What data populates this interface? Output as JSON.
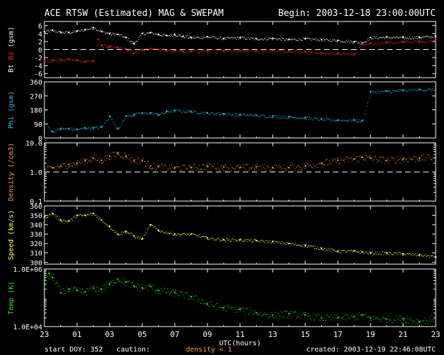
{
  "header": {
    "title": "ACE RTSW (Estimated) MAG & SWEPAM",
    "begin": "Begin: 2003-12-18 23:00:00UTC"
  },
  "footer": {
    "start_label": "start DOY: 352",
    "caution_label": "caution:",
    "caution_value": "density < 1",
    "created_label": "created: 2003-12-19 22:46:08UTC"
  },
  "colors": {
    "bt": "#ffffff",
    "bz": "#ff2020",
    "phi": "#33bbee",
    "density": "#ff9944",
    "speed": "#ffff44",
    "temp": "#33dd33",
    "axes": "#ffffff",
    "background": "#000000"
  },
  "chart_data": [
    {
      "type": "scatter",
      "panel": "mag",
      "ylabel_parts": [
        "Bt",
        "Bz",
        "(gsm)"
      ],
      "ylim": [
        -7,
        7
      ],
      "yticks": [
        6,
        4,
        2,
        0,
        -2,
        -4,
        -6
      ],
      "ytick_labels": [
        "6",
        "4",
        "2",
        "0",
        "-2",
        "-4",
        "-6"
      ],
      "reference_line": 0,
      "series": [
        {
          "name": "Bt",
          "color": "#ffffff",
          "x": [
            23.0,
            23.5,
            24.0,
            24.5,
            25.0,
            25.5,
            26.0,
            26.5,
            27.0,
            27.5,
            28.0,
            28.5,
            29.0,
            29.5,
            30.0,
            30.5,
            31.0,
            31.5,
            32.0,
            33.0,
            34.0,
            35.0,
            36.0,
            37.0,
            38.0,
            39.0,
            40.0,
            41.0,
            42.0,
            42.5,
            43.0,
            44.0,
            45.0,
            46.0,
            47.0
          ],
          "values": [
            4.5,
            4.8,
            4.3,
            4.3,
            4.6,
            5.0,
            5.5,
            4.5,
            4.0,
            3.8,
            3.0,
            1.5,
            4.0,
            4.2,
            3.8,
            3.5,
            3.8,
            3.3,
            3.0,
            3.2,
            2.8,
            3.0,
            2.7,
            2.8,
            2.5,
            2.7,
            2.5,
            2.3,
            2.0,
            1.7,
            3.0,
            3.1,
            3.0,
            3.1,
            3.3
          ]
        },
        {
          "name": "Bz",
          "color": "#ff2020",
          "x": [
            23.0,
            23.5,
            24.0,
            24.5,
            25.0,
            25.5,
            26.0,
            26.3,
            26.5,
            27.0,
            27.5,
            28.0,
            28.5,
            29.0,
            29.5,
            30.0,
            30.5,
            31.0,
            31.5,
            32.0,
            33.0,
            34.0,
            35.0,
            36.0,
            37.0,
            38.0,
            39.0,
            40.0,
            41.0,
            42.0,
            42.5,
            43.0,
            44.0,
            45.0,
            46.0,
            47.0
          ],
          "values": [
            -3.0,
            -2.6,
            -2.5,
            -2.4,
            -2.6,
            -3.0,
            -2.8,
            2.5,
            1.0,
            0.8,
            0.5,
            0.2,
            -1.0,
            0.0,
            0.2,
            0.0,
            -0.3,
            -0.3,
            -0.5,
            -0.4,
            -0.3,
            -0.2,
            -0.3,
            -0.3,
            -0.2,
            -0.3,
            -0.5,
            -0.8,
            -1.0,
            -1.2,
            1.5,
            1.6,
            1.7,
            1.9,
            2.0,
            2.2
          ]
        }
      ]
    },
    {
      "type": "scatter",
      "panel": "phi",
      "ylabel_parts": [
        "Phi",
        "(gsm)"
      ],
      "ylim": [
        0,
        360
      ],
      "yticks": [
        360,
        270,
        180,
        90,
        0
      ],
      "ytick_labels": [
        "360",
        "270",
        "180",
        "90",
        "0"
      ],
      "series": [
        {
          "name": "Phi",
          "color": "#33bbee",
          "x": [
            23.0,
            23.5,
            24.0,
            24.5,
            25.0,
            25.5,
            26.0,
            26.5,
            27.0,
            27.5,
            28.0,
            28.5,
            29.0,
            29.5,
            30.0,
            30.5,
            31.0,
            32.0,
            33.0,
            34.0,
            35.0,
            36.0,
            37.0,
            38.0,
            39.0,
            40.0,
            41.0,
            42.0,
            42.5,
            43.0,
            44.0,
            45.0,
            46.0,
            47.0
          ],
          "values": [
            100,
            40,
            60,
            60,
            55,
            65,
            65,
            70,
            140,
            60,
            140,
            150,
            160,
            160,
            150,
            170,
            175,
            170,
            160,
            155,
            150,
            145,
            140,
            135,
            130,
            120,
            115,
            115,
            110,
            295,
            300,
            305,
            310,
            310
          ]
        }
      ]
    },
    {
      "type": "scatter",
      "panel": "density",
      "ylabel_parts": [
        "Density",
        "(/cm3)"
      ],
      "yscale": "log",
      "ylim": [
        0.1,
        10.0
      ],
      "yticks": [
        10.0,
        1.0,
        0.1
      ],
      "ytick_labels": [
        "10.0",
        "1.0",
        "0.1"
      ],
      "reference_line": 1.0,
      "series": [
        {
          "name": "Density",
          "color": "#ff9944",
          "x": [
            23.0,
            23.5,
            24.0,
            24.5,
            25.0,
            25.5,
            26.0,
            26.5,
            27.0,
            27.5,
            28.0,
            28.5,
            29.0,
            29.5,
            30.0,
            31.0,
            32.0,
            33.0,
            34.0,
            35.0,
            36.0,
            37.0,
            38.0,
            39.0,
            40.0,
            41.0,
            42.0,
            42.5,
            43.0,
            44.0,
            45.0,
            46.0,
            47.0
          ],
          "values": [
            1.2,
            1.4,
            1.6,
            1.8,
            2.0,
            2.5,
            3.0,
            2.5,
            3.5,
            4.5,
            3.5,
            2.5,
            2.5,
            1.6,
            1.5,
            1.4,
            1.4,
            1.6,
            1.5,
            1.4,
            1.5,
            1.4,
            1.4,
            1.6,
            2.0,
            2.5,
            2.8,
            3.2,
            3.0,
            2.5,
            2.8,
            3.0,
            3.2
          ]
        }
      ]
    },
    {
      "type": "scatter",
      "panel": "speed",
      "ylabel_parts": [
        "Speed",
        "(km/s)"
      ],
      "ylim": [
        298,
        360
      ],
      "yticks": [
        360,
        350,
        340,
        330,
        320,
        310,
        300
      ],
      "ytick_labels": [
        "360",
        "350",
        "340",
        "330",
        "320",
        "310",
        "300"
      ],
      "series": [
        {
          "name": "Speed",
          "color": "#ffff44",
          "x": [
            23.0,
            23.5,
            24.0,
            24.5,
            25.0,
            25.5,
            26.0,
            26.5,
            27.0,
            27.5,
            28.0,
            28.5,
            29.0,
            29.5,
            30.0,
            31.0,
            32.0,
            33.0,
            34.0,
            35.0,
            36.0,
            37.0,
            38.0,
            39.0,
            40.0,
            41.0,
            42.0,
            42.5,
            43.0,
            44.0,
            45.0,
            46.0,
            47.0
          ],
          "values": [
            348,
            352,
            345,
            344,
            350,
            350,
            352,
            345,
            338,
            330,
            333,
            328,
            325,
            340,
            334,
            330,
            330,
            326,
            324,
            324,
            323,
            322,
            320,
            318,
            315,
            312,
            312,
            311,
            310,
            310,
            309,
            308,
            306
          ]
        }
      ]
    },
    {
      "type": "scatter",
      "panel": "temp",
      "ylabel_parts": [
        "Temp",
        "(K)"
      ],
      "yscale": "log",
      "ylim": [
        10000,
        1000000
      ],
      "yticks": [
        1000000,
        10000
      ],
      "ytick_labels": [
        "1.0E+06",
        "1.0E+04"
      ],
      "xlabel": "UTC(hours)",
      "xticks": [
        23,
        25,
        27,
        29,
        31,
        33,
        35,
        37,
        39,
        41,
        43,
        45,
        47
      ],
      "xtick_labels": [
        "23",
        "01",
        "03",
        "05",
        "07",
        "09",
        "11",
        "13",
        "15",
        "17",
        "19",
        "21",
        "23"
      ],
      "xlim": [
        23,
        47
      ],
      "series": [
        {
          "name": "Temp",
          "color": "#33dd33",
          "x": [
            23.0,
            23.3,
            23.5,
            24.0,
            24.5,
            25.0,
            25.5,
            26.0,
            26.5,
            27.0,
            27.5,
            28.0,
            28.5,
            29.0,
            29.5,
            30.0,
            31.0,
            32.0,
            33.0,
            34.0,
            35.0,
            36.0,
            37.0,
            38.0,
            39.0,
            40.0,
            41.0,
            42.0,
            42.5,
            43.0,
            44.0,
            45.0,
            46.0,
            47.0
          ],
          "values": [
            400000,
            700000,
            500000,
            150000,
            200000,
            180000,
            160000,
            220000,
            200000,
            300000,
            450000,
            350000,
            250000,
            220000,
            250000,
            180000,
            150000,
            110000,
            60000,
            45000,
            40000,
            30000,
            25000,
            28000,
            25000,
            20000,
            20000,
            22000,
            25000,
            20000,
            18000,
            19000,
            15000,
            20000
          ]
        }
      ]
    }
  ]
}
